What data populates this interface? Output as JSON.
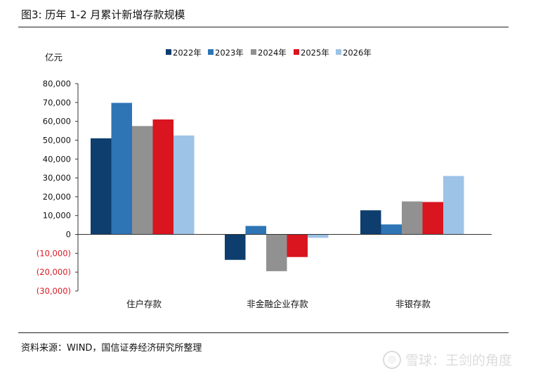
{
  "figure": {
    "title": "图3: 历年 1-2 月累计新增存款规模",
    "source": "资料来源：WIND，国信证券经济研究所整理",
    "watermark": "雪球：王剑的角度"
  },
  "chart_data": {
    "type": "bar",
    "title": "历年 1-2 月累计新增存款规模",
    "ylabel": "亿元",
    "xlabel": "",
    "ylim": [
      -30000,
      80000
    ],
    "yticks": [
      80000,
      70000,
      60000,
      50000,
      40000,
      30000,
      20000,
      10000,
      0,
      -10000,
      -20000,
      -30000
    ],
    "ytick_labels": [
      "80,000",
      "70,000",
      "60,000",
      "50,000",
      "40,000",
      "30,000",
      "20,000",
      "10,000",
      "0",
      "(10,000)",
      "(20,000)",
      "(30,000)"
    ],
    "negative_tick_color": "#d9151f",
    "categories": [
      "住户存款",
      "非金融企业存款",
      "非银存款"
    ],
    "legend_position": "top",
    "series": [
      {
        "name": "2022年",
        "color": "#0d3e6e",
        "values": [
          51000,
          -13500,
          12800
        ]
      },
      {
        "name": "2023年",
        "color": "#2e75b6",
        "values": [
          69800,
          4500,
          5300
        ]
      },
      {
        "name": "2024年",
        "color": "#919191",
        "values": [
          57500,
          -19500,
          17500
        ]
      },
      {
        "name": "2025年",
        "color": "#d9151f",
        "values": [
          61000,
          -12000,
          17200
        ]
      },
      {
        "name": "2026年",
        "color": "#9dc3e6",
        "values": [
          52500,
          -1800,
          31000
        ]
      }
    ]
  }
}
